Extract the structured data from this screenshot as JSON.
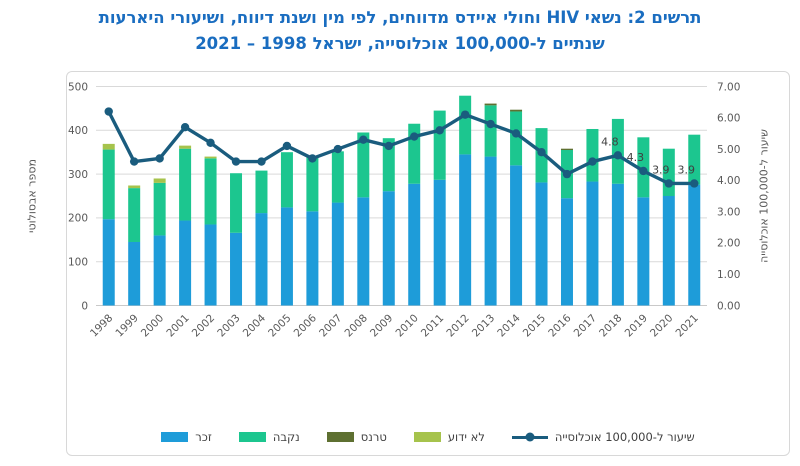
{
  "title": {
    "line1": "תרשים 2: נשאי HIV וחולי איידס מדווחים, לפי מין ושנת דיווח, ושיעורי היארעות",
    "line2": "שנתיים ל-100,000 אוכלוסייה, ישראל 1998 – 2021"
  },
  "axes": {
    "left_title": "מספר אבסולוטי",
    "right_title": "שיעור ל-100,000 אוכלוסייה",
    "left_ticks": [
      "0",
      "100",
      "200",
      "300",
      "400",
      "500"
    ],
    "right_ticks": [
      "0.00",
      "1.00",
      "2.00",
      "3.00",
      "4.00",
      "5.00",
      "6.00",
      "7.00"
    ]
  },
  "colors": {
    "title": "#1A6DC0",
    "axis_text": "#595959",
    "grid": "#D9D9D9",
    "baseline": "#C9C9C9",
    "data_label": "#404040",
    "box_border": "#D8D8D8"
  },
  "chart_data": {
    "type": "bar",
    "subtype": "stacked-bars-with-line-overlay",
    "categories": [
      "1998",
      "1999",
      "2000",
      "2001",
      "2002",
      "2003",
      "2004",
      "2005",
      "2006",
      "2007",
      "2008",
      "2009",
      "2010",
      "2011",
      "2012",
      "2013",
      "2014",
      "2015",
      "2016",
      "2017",
      "2018",
      "2019",
      "2020",
      "2021"
    ],
    "left_axis": {
      "min": 0,
      "max": 500,
      "step": 100
    },
    "right_axis": {
      "min": 0,
      "max": 7,
      "step": 1
    },
    "grid": "horizontal-on",
    "legend_position": "bottom-center",
    "series": [
      {
        "id": "male",
        "name": "זכר",
        "type": "bar",
        "color": "#1E9CD9",
        "values": [
          197,
          145,
          160,
          194,
          185,
          166,
          211,
          224,
          215,
          235,
          247,
          261,
          278,
          287,
          345,
          340,
          320,
          281,
          245,
          283,
          278,
          247,
          250,
          276
        ]
      },
      {
        "id": "female",
        "name": "נקבה",
        "type": "bar",
        "color": "#1CC68F",
        "values": [
          159,
          123,
          120,
          164,
          151,
          136,
          97,
          126,
          125,
          117,
          148,
          121,
          137,
          158,
          134,
          117,
          123,
          124,
          110,
          120,
          148,
          137,
          108,
          114
        ]
      },
      {
        "id": "trans",
        "name": "טרנס",
        "type": "bar",
        "color": "#5E7031",
        "values": [
          0,
          0,
          0,
          0,
          0,
          0,
          0,
          0,
          0,
          0,
          0,
          0,
          0,
          0,
          0,
          4,
          4,
          0,
          3,
          0,
          0,
          0,
          0,
          0
        ]
      },
      {
        "id": "unknown",
        "name": "לא ידוע",
        "type": "bar",
        "color": "#A6C34C",
        "values": [
          13,
          6,
          10,
          7,
          4,
          0,
          0,
          0,
          0,
          0,
          0,
          0,
          0,
          0,
          0,
          0,
          0,
          0,
          0,
          0,
          0,
          0,
          0,
          0
        ]
      },
      {
        "id": "rate",
        "name": "שיעור ל-100,000 אוכלוסייה",
        "type": "line",
        "color": "#1A5C7E",
        "values": [
          6.2,
          4.6,
          4.7,
          5.7,
          5.2,
          4.6,
          4.6,
          5.1,
          4.7,
          5.0,
          5.3,
          5.1,
          5.4,
          5.6,
          6.1,
          5.8,
          5.5,
          4.9,
          4.2,
          4.6,
          4.8,
          4.3,
          3.9,
          3.9
        ],
        "labeled_points": [
          {
            "category": "2018",
            "label": "4.8"
          },
          {
            "category": "2019",
            "label": "4.3"
          },
          {
            "category": "2020",
            "label": "3.9"
          },
          {
            "category": "2021",
            "label": "3.9"
          }
        ]
      }
    ]
  }
}
